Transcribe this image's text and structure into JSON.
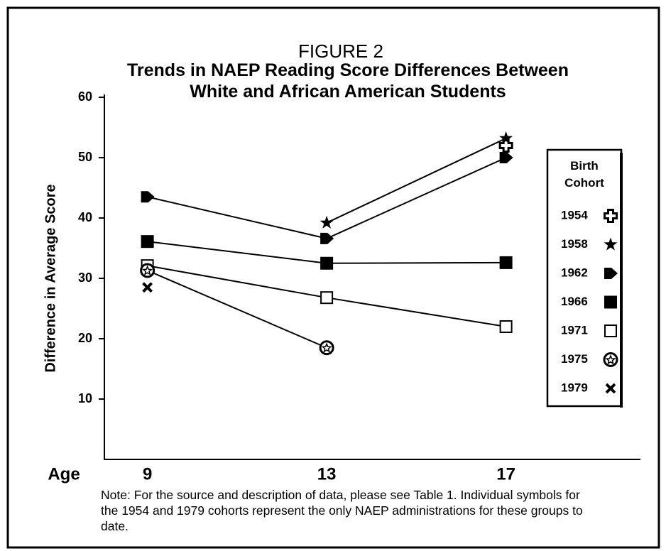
{
  "chart_data": {
    "type": "line",
    "title": "FIGURE 2",
    "subtitle": "Trends in NAEP Reading Score Differences Between White and African American Students",
    "y_label": "Difference in Average Score",
    "x_label": "Age",
    "x": [
      9,
      13,
      17
    ],
    "xlim": [
      8,
      20
    ],
    "xticks": [
      9,
      13,
      17
    ],
    "ylim": [
      0,
      60
    ],
    "yticks": [
      10,
      20,
      30,
      40,
      50,
      60
    ],
    "legend_title": "Birth Cohort",
    "series": [
      {
        "name": "1954",
        "color": "#000000",
        "marker": "plus",
        "values": [
          null,
          null,
          52
        ]
      },
      {
        "name": "1958",
        "color": "#000000",
        "marker": "star",
        "values": [
          null,
          39.2,
          53.2
        ]
      },
      {
        "name": "1962",
        "color": "#000000",
        "marker": "arrow",
        "values": [
          43.5,
          36.6,
          50
        ]
      },
      {
        "name": "1966",
        "color": "#000000",
        "marker": "square",
        "values": [
          36.1,
          32.5,
          32.6
        ]
      },
      {
        "name": "1971",
        "color": "#000000",
        "marker": "open-square",
        "values": [
          32.1,
          26.8,
          22
        ]
      },
      {
        "name": "1975",
        "color": "#000000",
        "marker": "circle-star",
        "values": [
          31.3,
          18.5,
          null
        ]
      },
      {
        "name": "1979",
        "color": "#000000",
        "marker": "x",
        "values": [
          28.5,
          null,
          null
        ]
      }
    ],
    "note": "Note: For the source and description of data, please see Table 1. Individual symbols for the 1954 and 1979 cohorts represent the only NAEP administrations for these groups to date."
  }
}
